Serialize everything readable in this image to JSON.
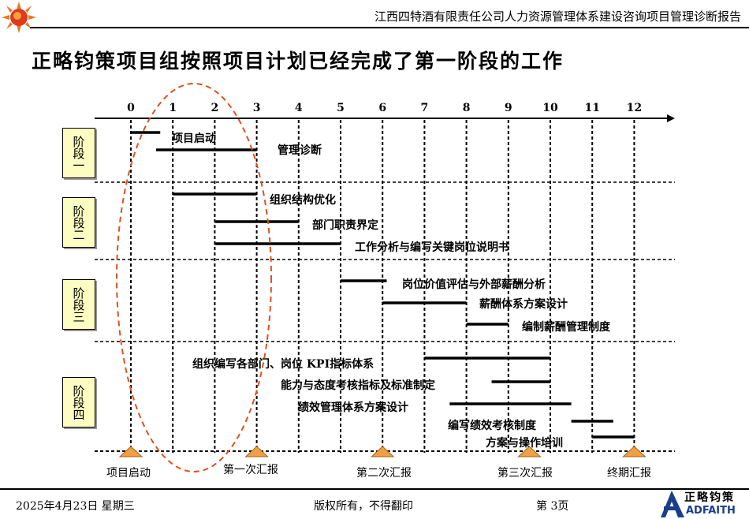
{
  "header": {
    "company_title": "江西四特酒有限责任公司人力资源管理体系建设咨询项目管理诊断报告"
  },
  "title": "正略钧策项目组按照项目计划已经完成了第一阶段的工作",
  "months": [
    "0",
    "1",
    "2",
    "3",
    "4",
    "5",
    "6",
    "7",
    "8",
    "9",
    "10",
    "11",
    "12"
  ],
  "stages": [
    "阶段一",
    "阶段二",
    "阶段三",
    "阶段四"
  ],
  "tasks": [
    {
      "label": "项目启动",
      "start": 0,
      "end": 0.7
    },
    {
      "label": "管理诊断",
      "start": 0.6,
      "end": 3
    },
    {
      "label": "组织结构优化",
      "start": 1,
      "end": 3
    },
    {
      "label": "部门职责界定",
      "start": 2,
      "end": 4
    },
    {
      "label": "工作分析与编写关键岗位说明书",
      "start": 2,
      "end": 5
    },
    {
      "label": "岗位价值评估与外部薪酬分析",
      "start": 5,
      "end": 6.1
    },
    {
      "label": "薪酬体系方案设计",
      "start": 6,
      "end": 8
    },
    {
      "label": "编制薪酬管理制度",
      "start": 8,
      "end": 9
    },
    {
      "label": "组织编写各部门、岗位  KPI指标体系",
      "start": 7,
      "end": 10
    },
    {
      "label": "能力与态度考核指标及标准制定",
      "start": 8.6,
      "end": 10
    },
    {
      "label": "绩效管理体系方案设计",
      "start": 7.6,
      "end": 10.5
    },
    {
      "label": "编写绩效考核制度",
      "start": 10.5,
      "end": 11.5
    },
    {
      "label": "方案与操作培训",
      "start": 11,
      "end": 12
    }
  ],
  "milestones": [
    {
      "label": "项目启动",
      "month": 0
    },
    {
      "label": "第一次汇报",
      "month": 3
    },
    {
      "label": "第二次汇报",
      "month": 6
    },
    {
      "label": "第三次汇报",
      "month": 9.5
    },
    {
      "label": "终期汇报",
      "month": 12
    }
  ],
  "colors": {
    "milestone": "#f0a040",
    "ellipse": "#e05020",
    "stage_bg": "#fdfdc2",
    "logo_blue": "#1a3e8c"
  },
  "footer": {
    "date": "2025年4月23日  星期三",
    "copyright": "版权所有，不得翻印",
    "page": "第 3页"
  },
  "logo": {
    "cn": "正略钧策",
    "en": "ADFAITH"
  }
}
